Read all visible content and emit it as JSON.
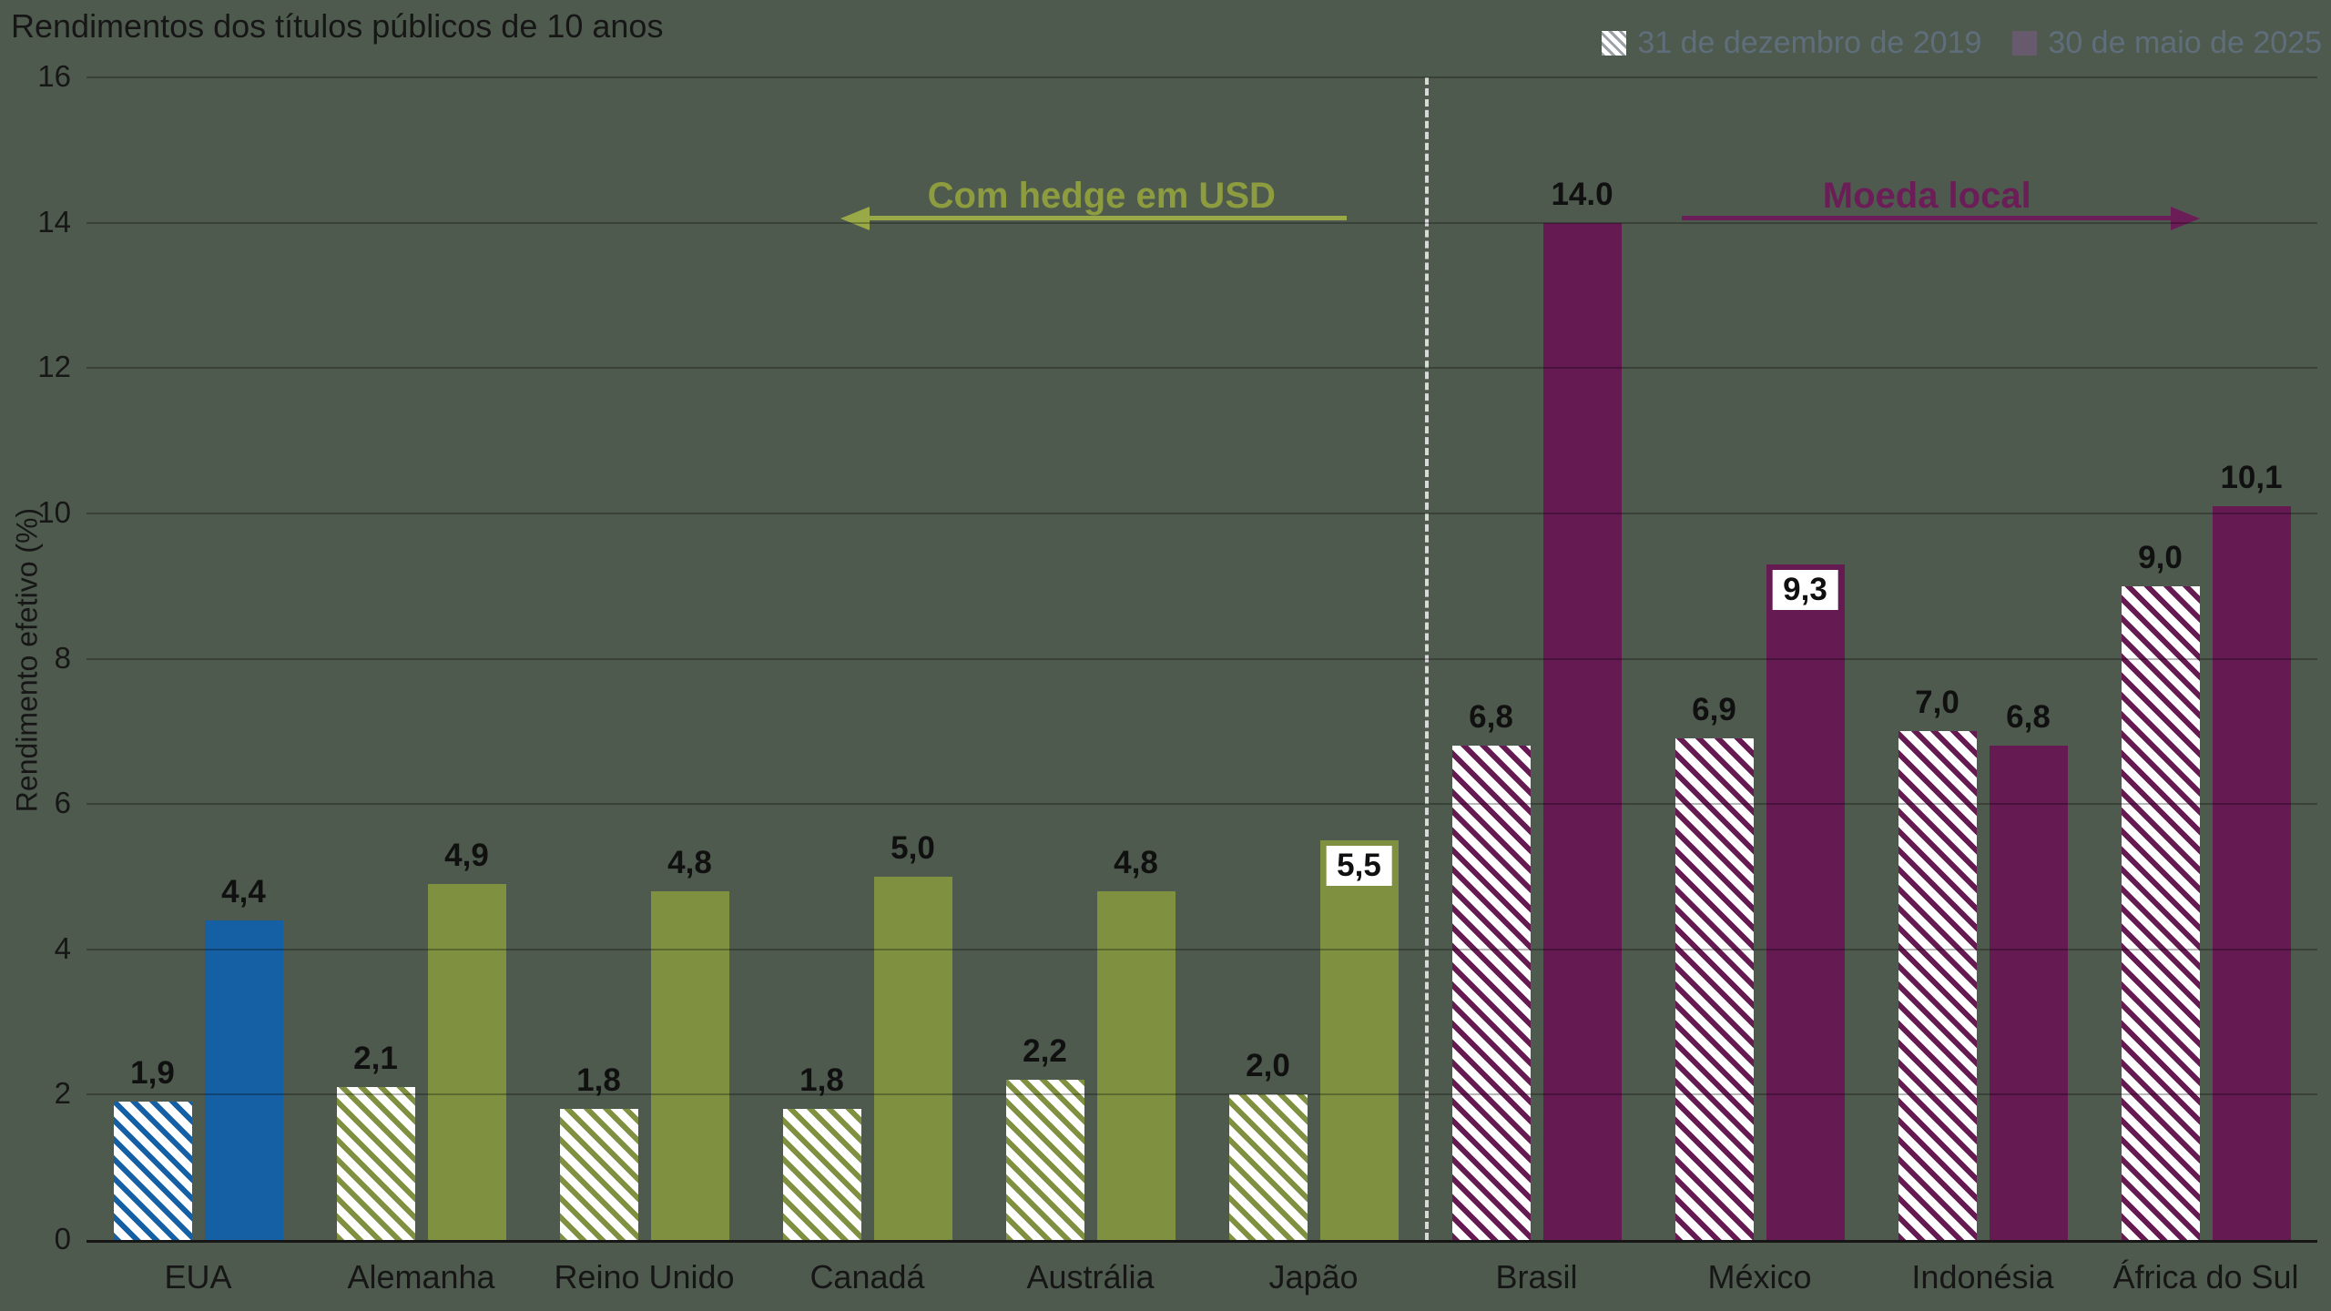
{
  "title": "Rendimentos dos títulos públicos de 10 anos",
  "legend": [
    {
      "label": "31 de dezembro de 2019",
      "style": "hatched"
    },
    {
      "label": "30 de maio de 2025",
      "style": "solid"
    }
  ],
  "colors": {
    "background": "#4f5a4e",
    "text": "#161616",
    "grid": "rgba(0,0,0,0.28)",
    "separator": "#d9d9d9",
    "legend_text": "#5e6e7b",
    "legend_hatch": "#9aa0a6",
    "legend_solid": "#665a6c",
    "us_blue": "#155fa5",
    "dm_olive": "#7f9040",
    "em_purple": "#661a52",
    "hedged_text": "#8c9c3e",
    "hedged_arrow": "#9aa948",
    "local_text": "#6b1d57",
    "local_arrow": "#6b1d57"
  },
  "chart_data": {
    "type": "bar",
    "title": "Rendimentos dos títulos públicos de 10 anos",
    "ylabel": "Rendimento efetivo (%)",
    "xlabel": "",
    "ylim": [
      0,
      16
    ],
    "yticks": [
      0,
      2,
      4,
      6,
      8,
      10,
      12,
      14,
      16
    ],
    "grid": true,
    "legend_position": "top-right",
    "categories": [
      "EUA",
      "Alemanha",
      "Reino Unido",
      "Canadá",
      "Austrália",
      "Japão",
      "Brasil",
      "México",
      "Indonésia",
      "África do Sul"
    ],
    "bar_colors": [
      "us_blue",
      "dm_olive",
      "dm_olive",
      "dm_olive",
      "dm_olive",
      "dm_olive",
      "em_purple",
      "em_purple",
      "em_purple",
      "em_purple"
    ],
    "series": [
      {
        "name": "31 de dezembro de 2019",
        "style": "hatched",
        "values": [
          1.9,
          2.1,
          1.8,
          1.8,
          2.2,
          2.0,
          6.8,
          6.9,
          7.0,
          9.0
        ],
        "value_labels": [
          "1,9",
          "2,1",
          "1,8",
          "1,8",
          "2,2",
          "2,0",
          "6,8",
          "6,9",
          "7,0",
          "9,0"
        ],
        "boxed": [
          false,
          false,
          false,
          false,
          false,
          false,
          false,
          false,
          false,
          false
        ]
      },
      {
        "name": "30 de maio de 2025",
        "style": "solid",
        "values": [
          4.4,
          4.9,
          4.8,
          5.0,
          4.8,
          5.5,
          14.0,
          9.3,
          6.8,
          10.1
        ],
        "value_labels": [
          "4,4",
          "4,9",
          "4,8",
          "5,0",
          "4,8",
          "5,5",
          "14.0",
          "9,3",
          "6,8",
          "10,1"
        ],
        "boxed": [
          false,
          false,
          false,
          false,
          false,
          true,
          false,
          true,
          false,
          false
        ]
      }
    ],
    "annotations": {
      "left": "Com hedge em USD",
      "right": "Moeda local"
    },
    "separator_after_category": "Japão"
  }
}
